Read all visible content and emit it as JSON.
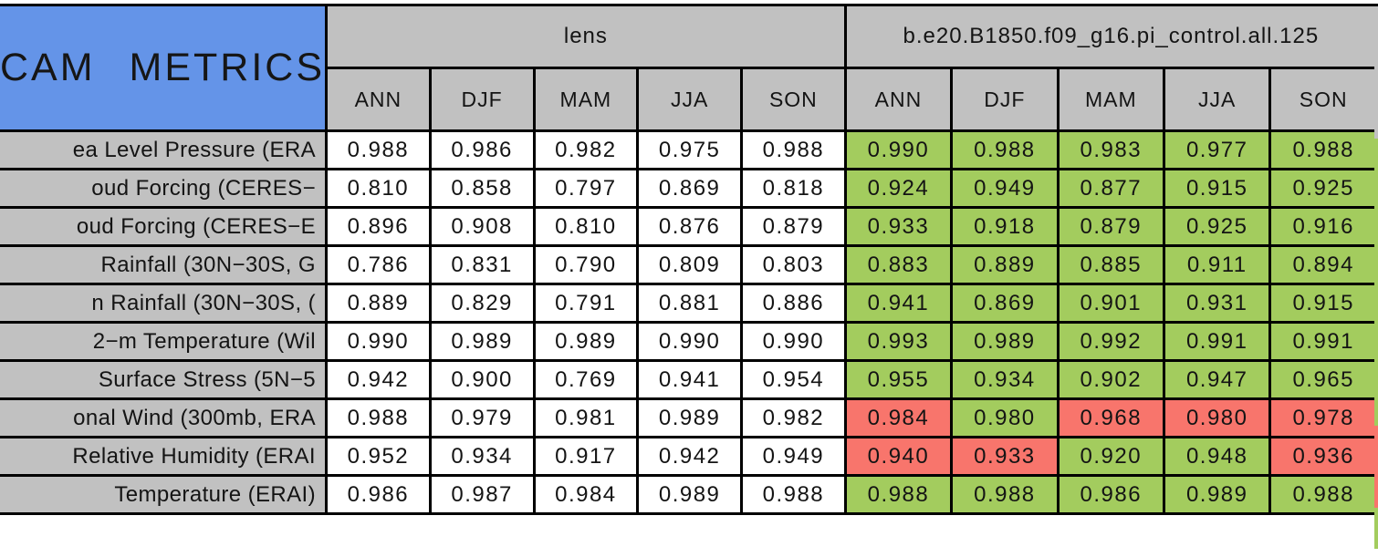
{
  "chart_data": {
    "type": "table",
    "title": "CAM  METRICS",
    "column_groups": [
      {
        "label": "lens"
      },
      {
        "label": "b.e20.B1850.f09_g16.pi_control.all.125"
      }
    ],
    "seasons": [
      "ANN",
      "DJF",
      "MAM",
      "JJA",
      "SON"
    ],
    "status_legend": {
      "good": "green = better than lens",
      "bad": "red = worse than lens"
    },
    "rows": [
      {
        "label": "ea Level Pressure (ERA",
        "lens": [
          "0.988",
          "0.986",
          "0.982",
          "0.975",
          "0.988"
        ],
        "control": [
          "0.990",
          "0.988",
          "0.983",
          "0.977",
          "0.988"
        ],
        "control_status": [
          "good",
          "good",
          "good",
          "good",
          "good"
        ]
      },
      {
        "label": "oud Forcing (CERES−",
        "lens": [
          "0.810",
          "0.858",
          "0.797",
          "0.869",
          "0.818"
        ],
        "control": [
          "0.924",
          "0.949",
          "0.877",
          "0.915",
          "0.925"
        ],
        "control_status": [
          "good",
          "good",
          "good",
          "good",
          "good"
        ]
      },
      {
        "label": "oud Forcing (CERES−E",
        "lens": [
          "0.896",
          "0.908",
          "0.810",
          "0.876",
          "0.879"
        ],
        "control": [
          "0.933",
          "0.918",
          "0.879",
          "0.925",
          "0.916"
        ],
        "control_status": [
          "good",
          "good",
          "good",
          "good",
          "good"
        ]
      },
      {
        "label": "Rainfall (30N−30S, G",
        "lens": [
          "0.786",
          "0.831",
          "0.790",
          "0.809",
          "0.803"
        ],
        "control": [
          "0.883",
          "0.889",
          "0.885",
          "0.911",
          "0.894"
        ],
        "control_status": [
          "good",
          "good",
          "good",
          "good",
          "good"
        ]
      },
      {
        "label": "n Rainfall (30N−30S, (",
        "lens": [
          "0.889",
          "0.829",
          "0.791",
          "0.881",
          "0.886"
        ],
        "control": [
          "0.941",
          "0.869",
          "0.901",
          "0.931",
          "0.915"
        ],
        "control_status": [
          "good",
          "good",
          "good",
          "good",
          "good"
        ]
      },
      {
        "label": "2−m Temperature (Wil",
        "lens": [
          "0.990",
          "0.989",
          "0.989",
          "0.990",
          "0.990"
        ],
        "control": [
          "0.993",
          "0.989",
          "0.992",
          "0.991",
          "0.991"
        ],
        "control_status": [
          "good",
          "good",
          "good",
          "good",
          "good"
        ]
      },
      {
        "label": "Surface Stress (5N−5",
        "lens": [
          "0.942",
          "0.900",
          "0.769",
          "0.941",
          "0.954"
        ],
        "control": [
          "0.955",
          "0.934",
          "0.902",
          "0.947",
          "0.965"
        ],
        "control_status": [
          "good",
          "good",
          "good",
          "good",
          "good"
        ]
      },
      {
        "label": "onal Wind (300mb, ERA",
        "lens": [
          "0.988",
          "0.979",
          "0.981",
          "0.989",
          "0.982"
        ],
        "control": [
          "0.984",
          "0.980",
          "0.968",
          "0.980",
          "0.978"
        ],
        "control_status": [
          "bad",
          "good",
          "bad",
          "bad",
          "bad"
        ]
      },
      {
        "label": "Relative Humidity (ERAI",
        "lens": [
          "0.952",
          "0.934",
          "0.917",
          "0.942",
          "0.949"
        ],
        "control": [
          "0.940",
          "0.933",
          "0.920",
          "0.948",
          "0.936"
        ],
        "control_status": [
          "bad",
          "bad",
          "good",
          "good",
          "bad"
        ]
      },
      {
        "label": "Temperature (ERAI)",
        "lens": [
          "0.986",
          "0.987",
          "0.984",
          "0.989",
          "0.988"
        ],
        "control": [
          "0.988",
          "0.988",
          "0.986",
          "0.989",
          "0.988"
        ],
        "control_status": [
          "good",
          "good",
          "good",
          "good",
          "good"
        ]
      }
    ]
  },
  "colors": {
    "title_bg": "#6494e8",
    "header_bg": "#c1c1c1",
    "better_green": "#a3cc5e",
    "worse_red": "#f8756c",
    "border": "#000000",
    "cell_bg": "#ffffff"
  },
  "layout_hints": {
    "cropped_left_labels": true,
    "cropped_next_column_on_right": true
  }
}
